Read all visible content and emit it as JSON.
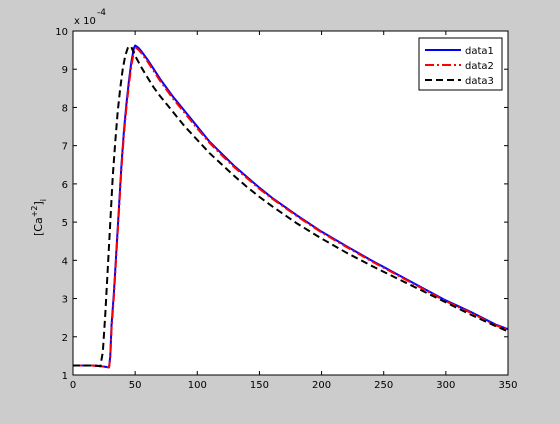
{
  "chart_data": {
    "type": "line",
    "title": "",
    "xlabel": "",
    "ylabel": "[Ca",
    "ylabel_sup": "+2",
    "ylabel_rbracket": "]",
    "ylabel_sub": "i",
    "xlim": [
      0,
      350
    ],
    "ylim": [
      1,
      10
    ],
    "xticks": [
      0,
      50,
      100,
      150,
      200,
      250,
      300,
      350
    ],
    "yticks": [
      1,
      2,
      3,
      4,
      5,
      6,
      7,
      8,
      9,
      10
    ],
    "y_multiplier_label": "x 10",
    "y_multiplier_exponent": "-4",
    "grid": false,
    "legend_position": "top-right",
    "series": [
      {
        "name": "data1",
        "color": "#0000ff",
        "dash": "solid",
        "x": [
          0,
          5,
          10,
          15,
          20,
          25,
          29,
          30,
          31,
          33,
          35,
          37,
          39,
          41,
          43,
          45,
          47,
          49,
          50,
          51,
          53,
          55,
          60,
          65,
          70,
          80,
          90,
          100,
          110,
          120,
          130,
          140,
          150,
          160,
          180,
          200,
          220,
          240,
          260,
          280,
          300,
          320,
          340,
          350
        ],
        "y": [
          1.25,
          1.25,
          1.25,
          1.25,
          1.24,
          1.22,
          1.2,
          1.5,
          2.3,
          3.2,
          4.3,
          5.4,
          6.5,
          7.4,
          8.1,
          8.7,
          9.2,
          9.55,
          9.62,
          9.6,
          9.55,
          9.47,
          9.25,
          9.0,
          8.75,
          8.3,
          7.9,
          7.5,
          7.1,
          6.78,
          6.46,
          6.18,
          5.9,
          5.64,
          5.18,
          4.75,
          4.37,
          4.0,
          3.65,
          3.3,
          2.95,
          2.65,
          2.32,
          2.2
        ]
      },
      {
        "name": "data2",
        "color": "#ff0000",
        "dash": "dashdot",
        "x": [
          0,
          5,
          10,
          15,
          20,
          25,
          29,
          30,
          31,
          33,
          35,
          37,
          39,
          41,
          43,
          45,
          47,
          49,
          50,
          51,
          53,
          55,
          60,
          65,
          70,
          80,
          90,
          100,
          110,
          120,
          130,
          140,
          150,
          160,
          180,
          200,
          220,
          240,
          260,
          280,
          300,
          320,
          340,
          350
        ],
        "y": [
          1.25,
          1.25,
          1.25,
          1.25,
          1.24,
          1.22,
          1.2,
          1.45,
          2.2,
          3.1,
          4.2,
          5.3,
          6.4,
          7.3,
          8.0,
          8.6,
          9.1,
          9.45,
          9.55,
          9.55,
          9.5,
          9.42,
          9.2,
          8.95,
          8.7,
          8.25,
          7.85,
          7.45,
          7.07,
          6.74,
          6.43,
          6.15,
          5.87,
          5.62,
          5.16,
          4.73,
          4.35,
          3.98,
          3.63,
          3.28,
          2.93,
          2.63,
          2.3,
          2.19
        ]
      },
      {
        "name": "data3",
        "color": "#000000",
        "dash": "dashed",
        "x": [
          0,
          5,
          10,
          15,
          20,
          22,
          24,
          26,
          28,
          30,
          32,
          34,
          36,
          38,
          40,
          42,
          44,
          45,
          46,
          47,
          48,
          50,
          55,
          60,
          65,
          70,
          80,
          90,
          100,
          110,
          120,
          130,
          140,
          150,
          160,
          180,
          200,
          220,
          240,
          260,
          280,
          300,
          320,
          340,
          350
        ],
        "y": [
          1.25,
          1.25,
          1.25,
          1.25,
          1.24,
          1.23,
          1.6,
          2.6,
          3.8,
          5.0,
          6.2,
          7.1,
          7.9,
          8.5,
          9.0,
          9.35,
          9.55,
          9.6,
          9.6,
          9.58,
          9.5,
          9.35,
          9.05,
          8.78,
          8.52,
          8.3,
          7.9,
          7.5,
          7.15,
          6.8,
          6.5,
          6.2,
          5.92,
          5.66,
          5.42,
          4.97,
          4.57,
          4.2,
          3.86,
          3.54,
          3.22,
          2.9,
          2.58,
          2.28,
          2.14
        ]
      }
    ]
  }
}
